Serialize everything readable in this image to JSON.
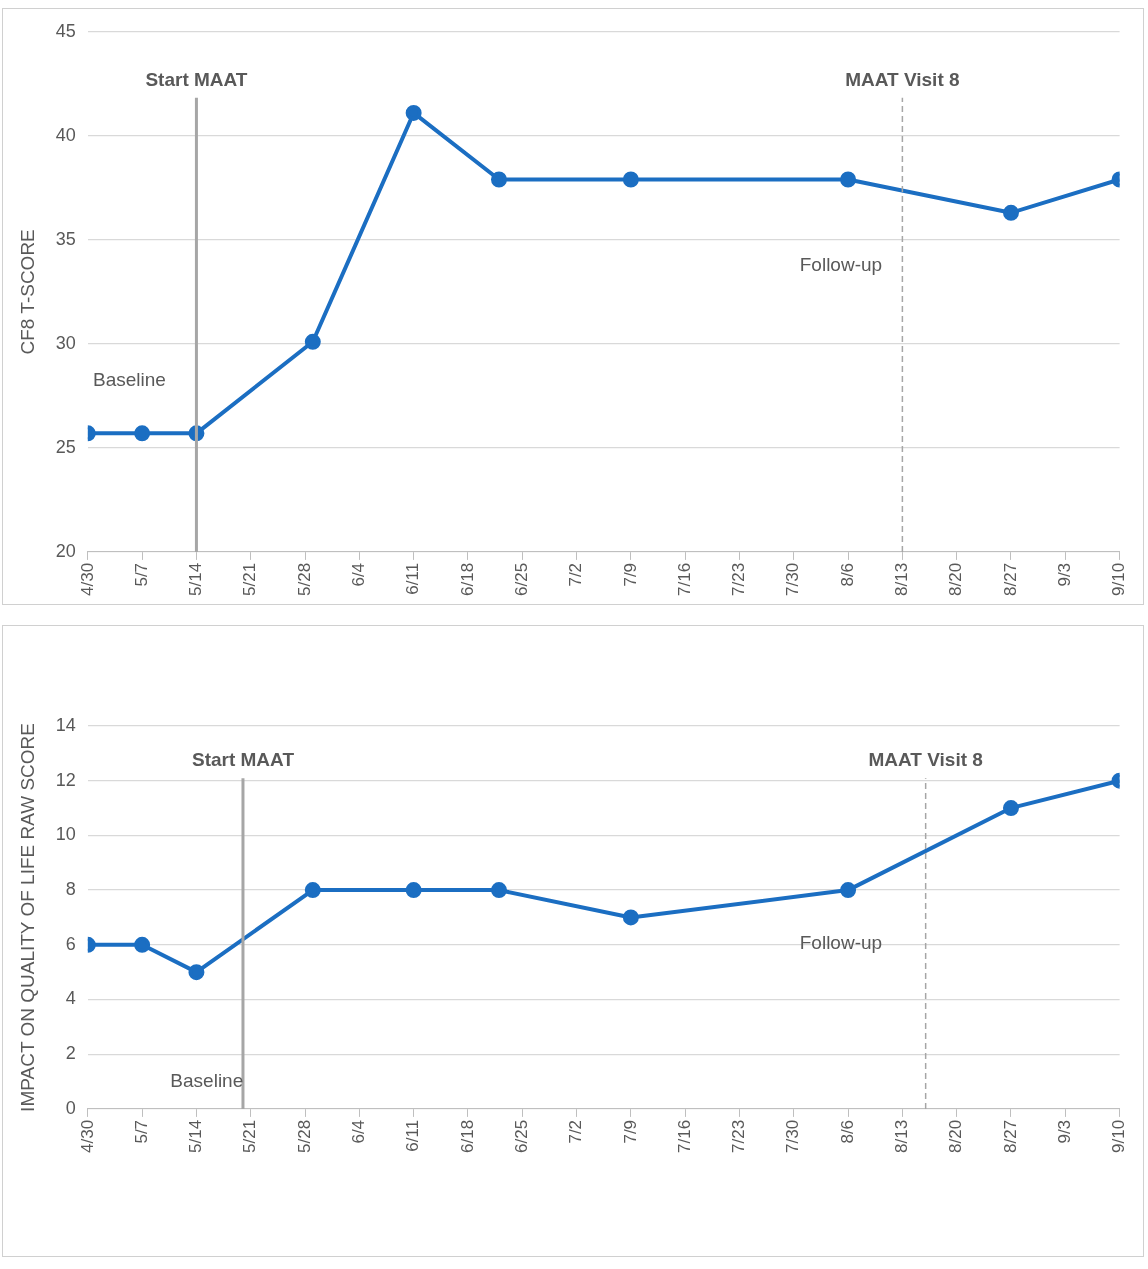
{
  "chart_data": [
    {
      "type": "line",
      "ylabel": "CF8 T-SCORE",
      "x": [
        "--04-30",
        "--05-07",
        "--05-14",
        "--05-29",
        "--06-11",
        "--06-22",
        "--07-09",
        "--08-06",
        "--08-27",
        "--09-10"
      ],
      "series": [
        {
          "color": "#1b6ec2",
          "values": [
            25.7,
            25.7,
            25.7,
            30.1,
            41.1,
            37.9,
            37.9,
            37.9,
            36.3,
            37.9
          ]
        }
      ],
      "xlim": [
        "--04-30",
        "--09-10"
      ],
      "xticks": [
        {
          "value": "--04-30",
          "label": "4/30"
        },
        {
          "value": "--05-07",
          "label": "5/7"
        },
        {
          "value": "--05-14",
          "label": "5/14"
        },
        {
          "value": "--05-21",
          "label": "5/21"
        },
        {
          "value": "--05-28",
          "label": "5/28"
        },
        {
          "value": "--06-04",
          "label": "6/4"
        },
        {
          "value": "--06-11",
          "label": "6/11"
        },
        {
          "value": "--06-18",
          "label": "6/18"
        },
        {
          "value": "--06-25",
          "label": "6/25"
        },
        {
          "value": "--07-02",
          "label": "7/2"
        },
        {
          "value": "--07-09",
          "label": "7/9"
        },
        {
          "value": "--07-16",
          "label": "7/16"
        },
        {
          "value": "--07-23",
          "label": "7/23"
        },
        {
          "value": "--07-30",
          "label": "7/30"
        },
        {
          "value": "--08-06",
          "label": "8/6"
        },
        {
          "value": "--08-13",
          "label": "8/13"
        },
        {
          "value": "--08-20",
          "label": "8/20"
        },
        {
          "value": "--08-27",
          "label": "8/27"
        },
        {
          "value": "--09-03",
          "label": "9/3"
        },
        {
          "value": "--09-10",
          "label": "9/10"
        }
      ],
      "ylim": [
        20,
        45
      ],
      "yticks": [
        20,
        25,
        30,
        35,
        40,
        45
      ],
      "ref_lines": [
        {
          "axis": "x",
          "value": "--05-14",
          "label": "Start MAAT",
          "color": "#a6a6a6",
          "line_style": "solid"
        },
        {
          "axis": "x",
          "value": "--08-13",
          "label": "MAAT Visit 8",
          "color": "#a6a6a6",
          "line_style": "dashed"
        }
      ],
      "annotations": [
        "Baseline",
        "Follow-up"
      ],
      "grid": "y",
      "legend": false,
      "marker": "circle",
      "line_style": "solid"
    },
    {
      "type": "line",
      "ylabel": "IMPACT ON QUALITY OF LIFE RAW SCORE",
      "x": [
        "--04-30",
        "--05-07",
        "--05-14",
        "--05-29",
        "--06-11",
        "--06-22",
        "--07-09",
        "--08-06",
        "--08-27",
        "--09-10"
      ],
      "series": [
        {
          "color": "#1b6ec2",
          "values": [
            6,
            6,
            5,
            8,
            8,
            8,
            7,
            8,
            11,
            12
          ]
        }
      ],
      "xlim": [
        "--04-30",
        "--09-10"
      ],
      "xticks": [
        {
          "value": "--04-30",
          "label": "4/30"
        },
        {
          "value": "--05-07",
          "label": "5/7"
        },
        {
          "value": "--05-14",
          "label": "5/14"
        },
        {
          "value": "--05-21",
          "label": "5/21"
        },
        {
          "value": "--05-28",
          "label": "5/28"
        },
        {
          "value": "--06-04",
          "label": "6/4"
        },
        {
          "value": "--06-11",
          "label": "6/11"
        },
        {
          "value": "--06-18",
          "label": "6/18"
        },
        {
          "value": "--06-25",
          "label": "6/25"
        },
        {
          "value": "--07-02",
          "label": "7/2"
        },
        {
          "value": "--07-09",
          "label": "7/9"
        },
        {
          "value": "--07-16",
          "label": "7/16"
        },
        {
          "value": "--07-23",
          "label": "7/23"
        },
        {
          "value": "--07-30",
          "label": "7/30"
        },
        {
          "value": "--08-06",
          "label": "8/6"
        },
        {
          "value": "--08-13",
          "label": "8/13"
        },
        {
          "value": "--08-20",
          "label": "8/20"
        },
        {
          "value": "--08-27",
          "label": "8/27"
        },
        {
          "value": "--09-03",
          "label": "9/3"
        },
        {
          "value": "--09-10",
          "label": "9/10"
        }
      ],
      "ylim": [
        0,
        14
      ],
      "yticks": [
        0,
        2,
        4,
        6,
        8,
        10,
        12,
        14
      ],
      "ref_lines": [
        {
          "axis": "x",
          "value": "--05-20",
          "label": "Start MAAT",
          "color": "#a6a6a6",
          "line_style": "solid"
        },
        {
          "axis": "x",
          "value": "--08-16",
          "label": "MAAT Visit 8",
          "color": "#a6a6a6",
          "line_style": "dashed"
        }
      ],
      "annotations": [
        "Baseline",
        "Follow-up"
      ],
      "grid": "y",
      "legend": false,
      "marker": "circle",
      "line_style": "solid"
    }
  ]
}
